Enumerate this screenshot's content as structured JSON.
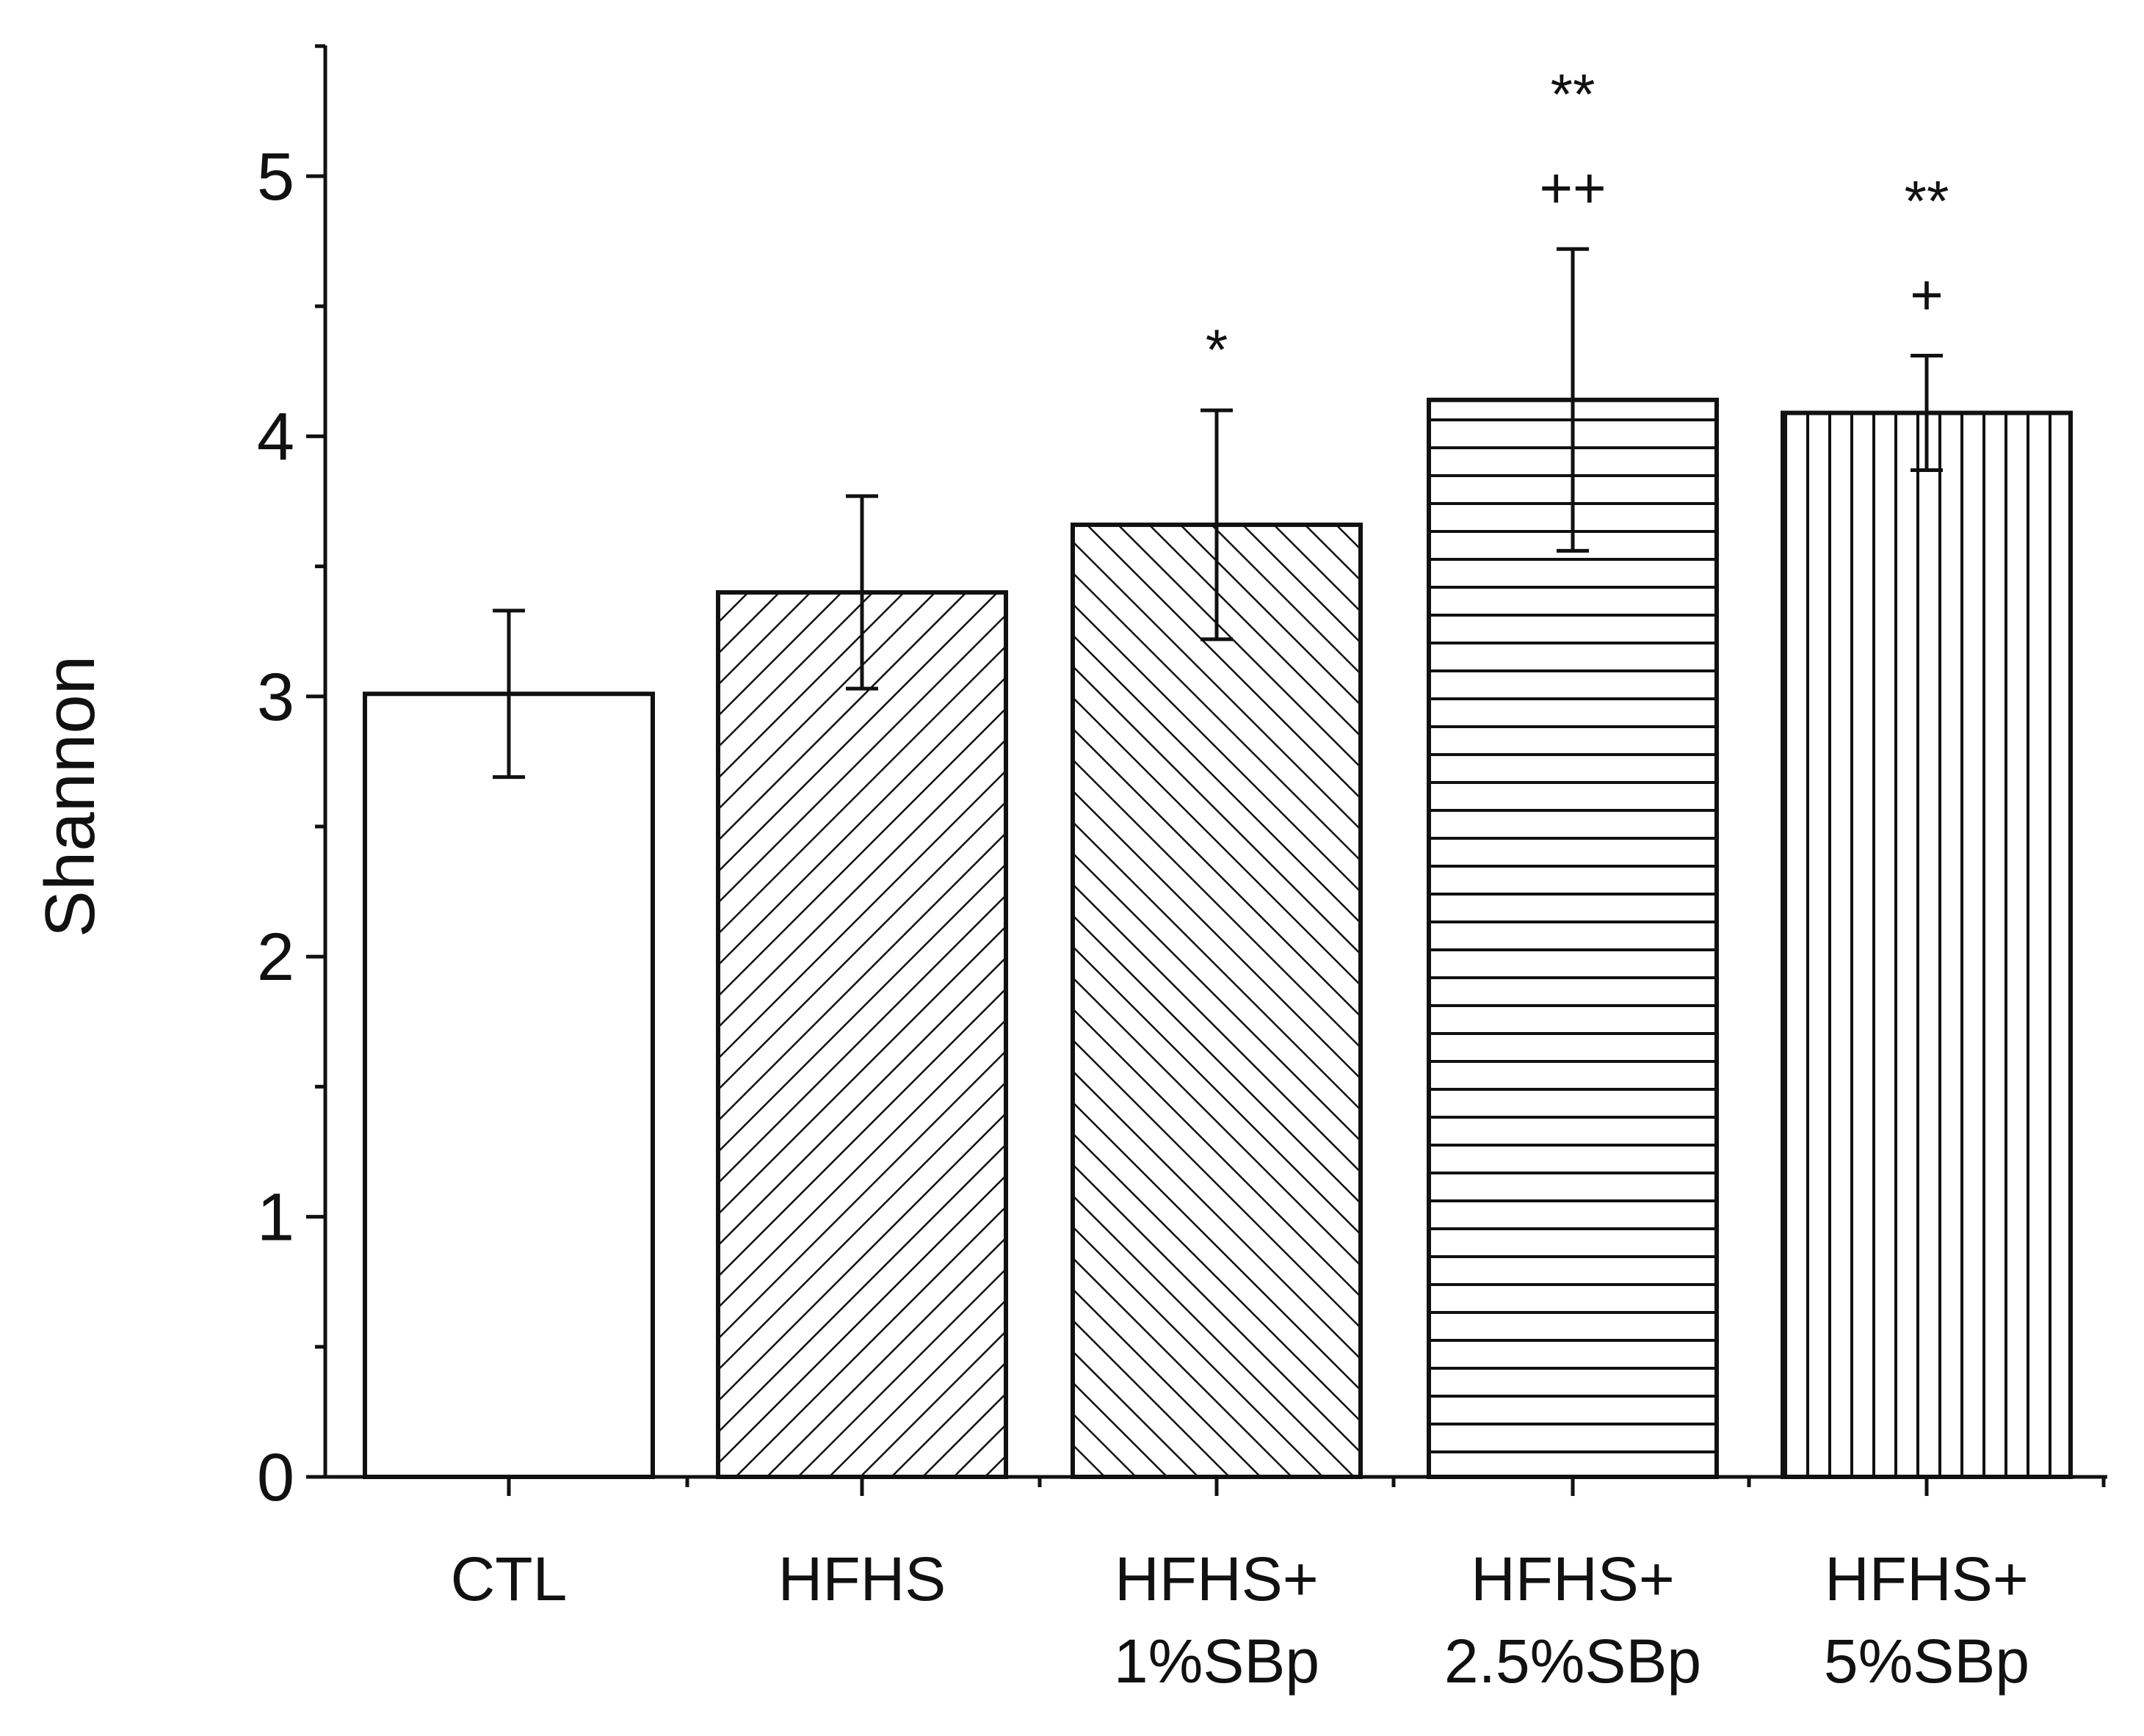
{
  "chart_data": {
    "type": "bar",
    "categories": [
      [
        "CTL"
      ],
      [
        "HFHS"
      ],
      [
        "HFHS+",
        "1%SBp"
      ],
      [
        "HFHS+",
        "2.5%SBp"
      ],
      [
        "HFHS+",
        "5%SBp"
      ]
    ],
    "values": [
      3.01,
      3.4,
      3.66,
      4.14,
      4.09
    ],
    "error": [
      0.32,
      0.37,
      0.44,
      0.58,
      0.22
    ],
    "patterns": [
      "none",
      "diag-up",
      "diag-down",
      "horizontal",
      "vertical"
    ],
    "significance": [
      [],
      [],
      [
        "*"
      ],
      [
        "++",
        "**"
      ],
      [
        "+",
        "**"
      ]
    ],
    "title": "",
    "xlabel": "",
    "ylabel": "Shannon",
    "ylim": [
      0,
      5.5
    ],
    "yticks": [
      0,
      1,
      2,
      3,
      4,
      5
    ],
    "grid": false,
    "colors": {
      "bar_fill": "#ffffff",
      "stroke": "#111111"
    }
  }
}
